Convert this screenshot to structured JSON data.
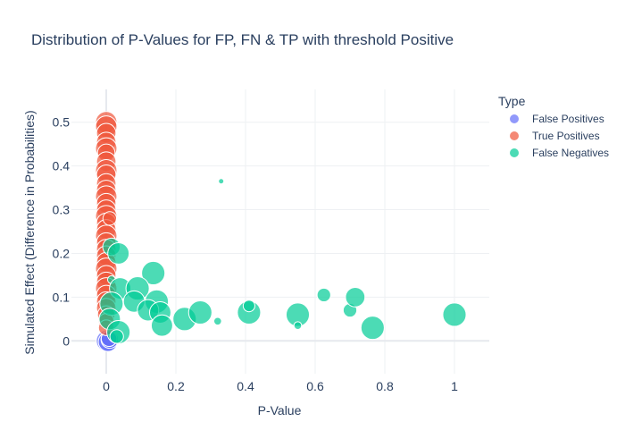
{
  "chart_data": {
    "type": "scatter",
    "title": "Distribution of P-Values for FP, FN & TP with threshold Positive",
    "xlabel": "P-Value",
    "ylabel": "Simulated Effect (Difference in Probabilities)",
    "xlim": [
      -0.1,
      1.1
    ],
    "ylim": [
      -0.075,
      0.575
    ],
    "x_ticks": [
      0,
      0.2,
      0.4,
      0.6,
      0.8,
      1
    ],
    "x_tick_labels": [
      "0",
      "0.2",
      "0.4",
      "0.6",
      "0.8",
      "1"
    ],
    "y_ticks": [
      0,
      0.1,
      0.2,
      0.3,
      0.4,
      0.5
    ],
    "y_tick_labels": [
      "0",
      "0.1",
      "0.2",
      "0.3",
      "0.4",
      "0.5"
    ],
    "grid": true,
    "legend": {
      "title": "Type",
      "placement": "top-right"
    },
    "series": [
      {
        "name": "False Positives",
        "color": "#636efa",
        "points": [
          {
            "x": 0.002,
            "y": 0.0,
            "size": 0.55
          },
          {
            "x": 0.005,
            "y": -0.002,
            "size": 0.5
          },
          {
            "x": 0.01,
            "y": 0.003,
            "size": 0.45
          },
          {
            "x": 0.008,
            "y": 0.005,
            "size": 0.4
          }
        ]
      },
      {
        "name": "True Positives",
        "color": "#ef553b",
        "points": [
          {
            "x": 0.0,
            "y": 0.5,
            "size": 0.55
          },
          {
            "x": 0.0,
            "y": 0.49,
            "size": 0.55
          },
          {
            "x": 0.0,
            "y": 0.475,
            "size": 0.5
          },
          {
            "x": 0.0,
            "y": 0.455,
            "size": 0.5
          },
          {
            "x": 0.0,
            "y": 0.44,
            "size": 0.55
          },
          {
            "x": 0.0,
            "y": 0.43,
            "size": 0.45
          },
          {
            "x": 0.0,
            "y": 0.41,
            "size": 0.5
          },
          {
            "x": 0.0,
            "y": 0.39,
            "size": 0.55
          },
          {
            "x": 0.0,
            "y": 0.38,
            "size": 0.5
          },
          {
            "x": 0.0,
            "y": 0.36,
            "size": 0.5
          },
          {
            "x": 0.0,
            "y": 0.345,
            "size": 0.5
          },
          {
            "x": 0.0,
            "y": 0.33,
            "size": 0.55
          },
          {
            "x": 0.0,
            "y": 0.315,
            "size": 0.5
          },
          {
            "x": 0.0,
            "y": 0.3,
            "size": 0.5
          },
          {
            "x": 0.0,
            "y": 0.285,
            "size": 0.55
          },
          {
            "x": 0.0,
            "y": 0.27,
            "size": 0.5
          },
          {
            "x": 0.0,
            "y": 0.255,
            "size": 0.5
          },
          {
            "x": 0.0,
            "y": 0.24,
            "size": 0.55
          },
          {
            "x": 0.0,
            "y": 0.225,
            "size": 0.5
          },
          {
            "x": 0.0,
            "y": 0.21,
            "size": 0.5
          },
          {
            "x": 0.0,
            "y": 0.195,
            "size": 0.5
          },
          {
            "x": 0.0,
            "y": 0.18,
            "size": 0.5
          },
          {
            "x": 0.0,
            "y": 0.165,
            "size": 0.55
          },
          {
            "x": 0.0,
            "y": 0.15,
            "size": 0.5
          },
          {
            "x": 0.0,
            "y": 0.135,
            "size": 0.5
          },
          {
            "x": 0.0,
            "y": 0.12,
            "size": 0.55
          },
          {
            "x": 0.0,
            "y": 0.105,
            "size": 0.5
          },
          {
            "x": 0.0,
            "y": 0.09,
            "size": 0.5
          },
          {
            "x": 0.0,
            "y": 0.075,
            "size": 0.5
          },
          {
            "x": 0.0,
            "y": 0.06,
            "size": 0.45
          },
          {
            "x": 0.0,
            "y": 0.045,
            "size": 0.4
          },
          {
            "x": 0.0,
            "y": 0.03,
            "size": 0.4
          },
          {
            "x": 0.01,
            "y": 0.28,
            "size": 0.35
          }
        ]
      },
      {
        "name": "False Negatives",
        "color": "#00cc96",
        "points": [
          {
            "x": 0.33,
            "y": 0.365,
            "size": 0.12
          },
          {
            "x": 0.015,
            "y": 0.215,
            "size": 0.45
          },
          {
            "x": 0.035,
            "y": 0.2,
            "size": 0.55
          },
          {
            "x": 0.135,
            "y": 0.155,
            "size": 0.6
          },
          {
            "x": 0.015,
            "y": 0.14,
            "size": 0.2
          },
          {
            "x": 0.04,
            "y": 0.12,
            "size": 0.55
          },
          {
            "x": 0.09,
            "y": 0.12,
            "size": 0.6
          },
          {
            "x": 0.015,
            "y": 0.085,
            "size": 0.6
          },
          {
            "x": 0.08,
            "y": 0.09,
            "size": 0.55
          },
          {
            "x": 0.145,
            "y": 0.09,
            "size": 0.6
          },
          {
            "x": 0.12,
            "y": 0.07,
            "size": 0.55
          },
          {
            "x": 0.155,
            "y": 0.065,
            "size": 0.55
          },
          {
            "x": 0.01,
            "y": 0.05,
            "size": 0.55
          },
          {
            "x": 0.035,
            "y": 0.02,
            "size": 0.6
          },
          {
            "x": 0.03,
            "y": 0.01,
            "size": 0.35
          },
          {
            "x": 0.16,
            "y": 0.035,
            "size": 0.55
          },
          {
            "x": 0.225,
            "y": 0.05,
            "size": 0.6
          },
          {
            "x": 0.27,
            "y": 0.065,
            "size": 0.6
          },
          {
            "x": 0.32,
            "y": 0.045,
            "size": 0.2
          },
          {
            "x": 0.41,
            "y": 0.065,
            "size": 0.6
          },
          {
            "x": 0.41,
            "y": 0.08,
            "size": 0.3
          },
          {
            "x": 0.55,
            "y": 0.06,
            "size": 0.6
          },
          {
            "x": 0.55,
            "y": 0.035,
            "size": 0.2
          },
          {
            "x": 0.625,
            "y": 0.105,
            "size": 0.35
          },
          {
            "x": 0.7,
            "y": 0.07,
            "size": 0.35
          },
          {
            "x": 0.715,
            "y": 0.1,
            "size": 0.5
          },
          {
            "x": 0.765,
            "y": 0.03,
            "size": 0.6
          },
          {
            "x": 1.0,
            "y": 0.06,
            "size": 0.6
          }
        ]
      }
    ]
  }
}
